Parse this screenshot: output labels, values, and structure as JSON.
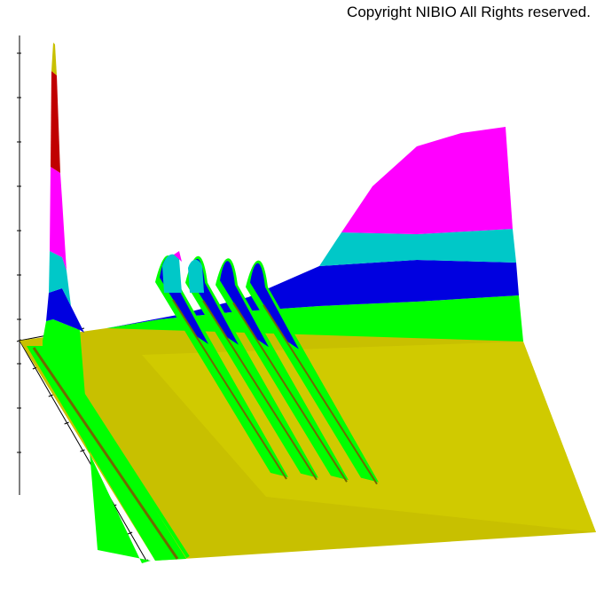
{
  "copyright": "Copyright NIBIO All Rights reserved.",
  "colors": {
    "background": "#ffffff",
    "floor": "#c8c000",
    "levels": [
      "#c8c000",
      "#00ff00",
      "#0000e0",
      "#00c8c8",
      "#ff00ff",
      "#c00000",
      "#c8c000"
    ],
    "ridge_shadow": "#6e6a00"
  },
  "chart_data": {
    "type": "3d-surface",
    "title": "",
    "xlabel": "",
    "ylabel": "",
    "zlabel": "",
    "grid": false,
    "legend": "none",
    "color_bands": [
      "yellow-green",
      "green",
      "blue",
      "cyan",
      "magenta",
      "red"
    ],
    "ridges": [
      {
        "position": 0.02,
        "height": 1.0
      },
      {
        "position": 0.18,
        "height": 0.3
      },
      {
        "position": 0.23,
        "height": 0.28
      },
      {
        "position": 0.3,
        "height": 0.22
      },
      {
        "position": 0.35,
        "height": 0.16
      }
    ],
    "back_wall_profile": [
      0.08,
      0.1,
      0.12,
      0.14,
      0.16,
      0.18,
      0.25,
      0.42,
      0.58,
      0.68,
      0.72
    ]
  }
}
